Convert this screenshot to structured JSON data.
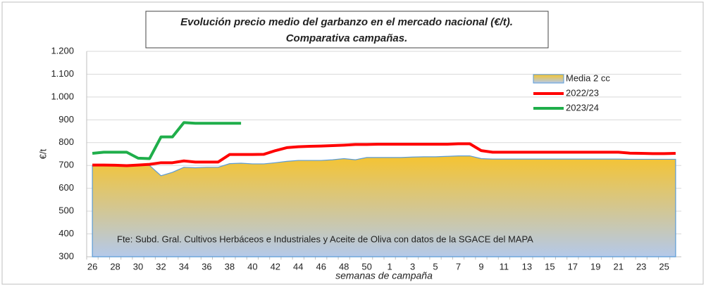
{
  "chart_data": {
    "type": "line",
    "title": "Evolución precio medio del garbanzo en el mercado nacional (€/t).",
    "subtitle": "Comparativa campañas.",
    "annotation": "Fte: Subd. Gral. Cultivos Herbáceos e Industriales y Aceite de Oliva con datos de la SGACE del MAPA",
    "y_label": "€/t",
    "x_label": "semanas de campaña",
    "categories": [
      "26",
      null,
      "28",
      null,
      "30",
      null,
      "32",
      null,
      "34",
      null,
      "36",
      null,
      "38",
      null,
      "40",
      null,
      "42",
      null,
      "44",
      null,
      "46",
      null,
      "48",
      null,
      "50",
      null,
      "1",
      null,
      "3",
      null,
      "5",
      null,
      "7",
      null,
      "9",
      null,
      "11",
      null,
      "13",
      null,
      "15",
      null,
      "17",
      null,
      "19",
      null,
      "21",
      null,
      "23",
      null,
      "25",
      null
    ],
    "series": [
      {
        "name": "Media 2 cc",
        "style": "area",
        "color": "#f5c431",
        "edge_color": "#5b9bd5",
        "values": [
          700,
          700,
          700,
          698,
          700,
          700,
          655,
          670,
          692,
          690,
          692,
          692,
          708,
          710,
          707,
          707,
          712,
          718,
          722,
          722,
          722,
          725,
          730,
          725,
          735,
          735,
          735,
          735,
          737,
          738,
          738,
          740,
          742,
          742,
          730,
          728,
          728,
          728,
          728,
          728,
          728,
          728,
          728,
          728,
          728,
          728,
          728,
          727,
          727,
          727,
          727,
          727
        ]
      },
      {
        "name": "2022/23",
        "style": "line",
        "color": "#ff0000",
        "values": [
          702,
          702,
          701,
          699,
          702,
          705,
          712,
          712,
          720,
          715,
          715,
          715,
          748,
          748,
          748,
          749,
          765,
          778,
          782,
          784,
          785,
          787,
          789,
          792,
          792,
          793,
          793,
          793,
          793,
          793,
          793,
          793,
          795,
          795,
          765,
          758,
          758,
          758,
          758,
          758,
          758,
          758,
          758,
          758,
          758,
          758,
          758,
          754,
          753,
          752,
          752,
          753
        ]
      },
      {
        "name": "2023/24",
        "style": "line",
        "color": "#1fae4a",
        "values": [
          753,
          758,
          758,
          758,
          732,
          730,
          825,
          825,
          888,
          885,
          885,
          885,
          885,
          885,
          null,
          null,
          null,
          null,
          null,
          null,
          null,
          null,
          null,
          null,
          null,
          null,
          null,
          null,
          null,
          null,
          null,
          null,
          null,
          null,
          null,
          null,
          null,
          null,
          null,
          null,
          null,
          null,
          null,
          null,
          null,
          null,
          null,
          null,
          null,
          null,
          null,
          null
        ]
      }
    ],
    "ylim": [
      300,
      1200
    ],
    "yticks": [
      300,
      400,
      500,
      600,
      700,
      800,
      900,
      {
        "value": 1000,
        "label": "1.000"
      },
      {
        "value": 1100,
        "label": "1.100"
      },
      {
        "value": 1200,
        "label": "1.200"
      }
    ],
    "grid": true,
    "legend": "upper right"
  }
}
